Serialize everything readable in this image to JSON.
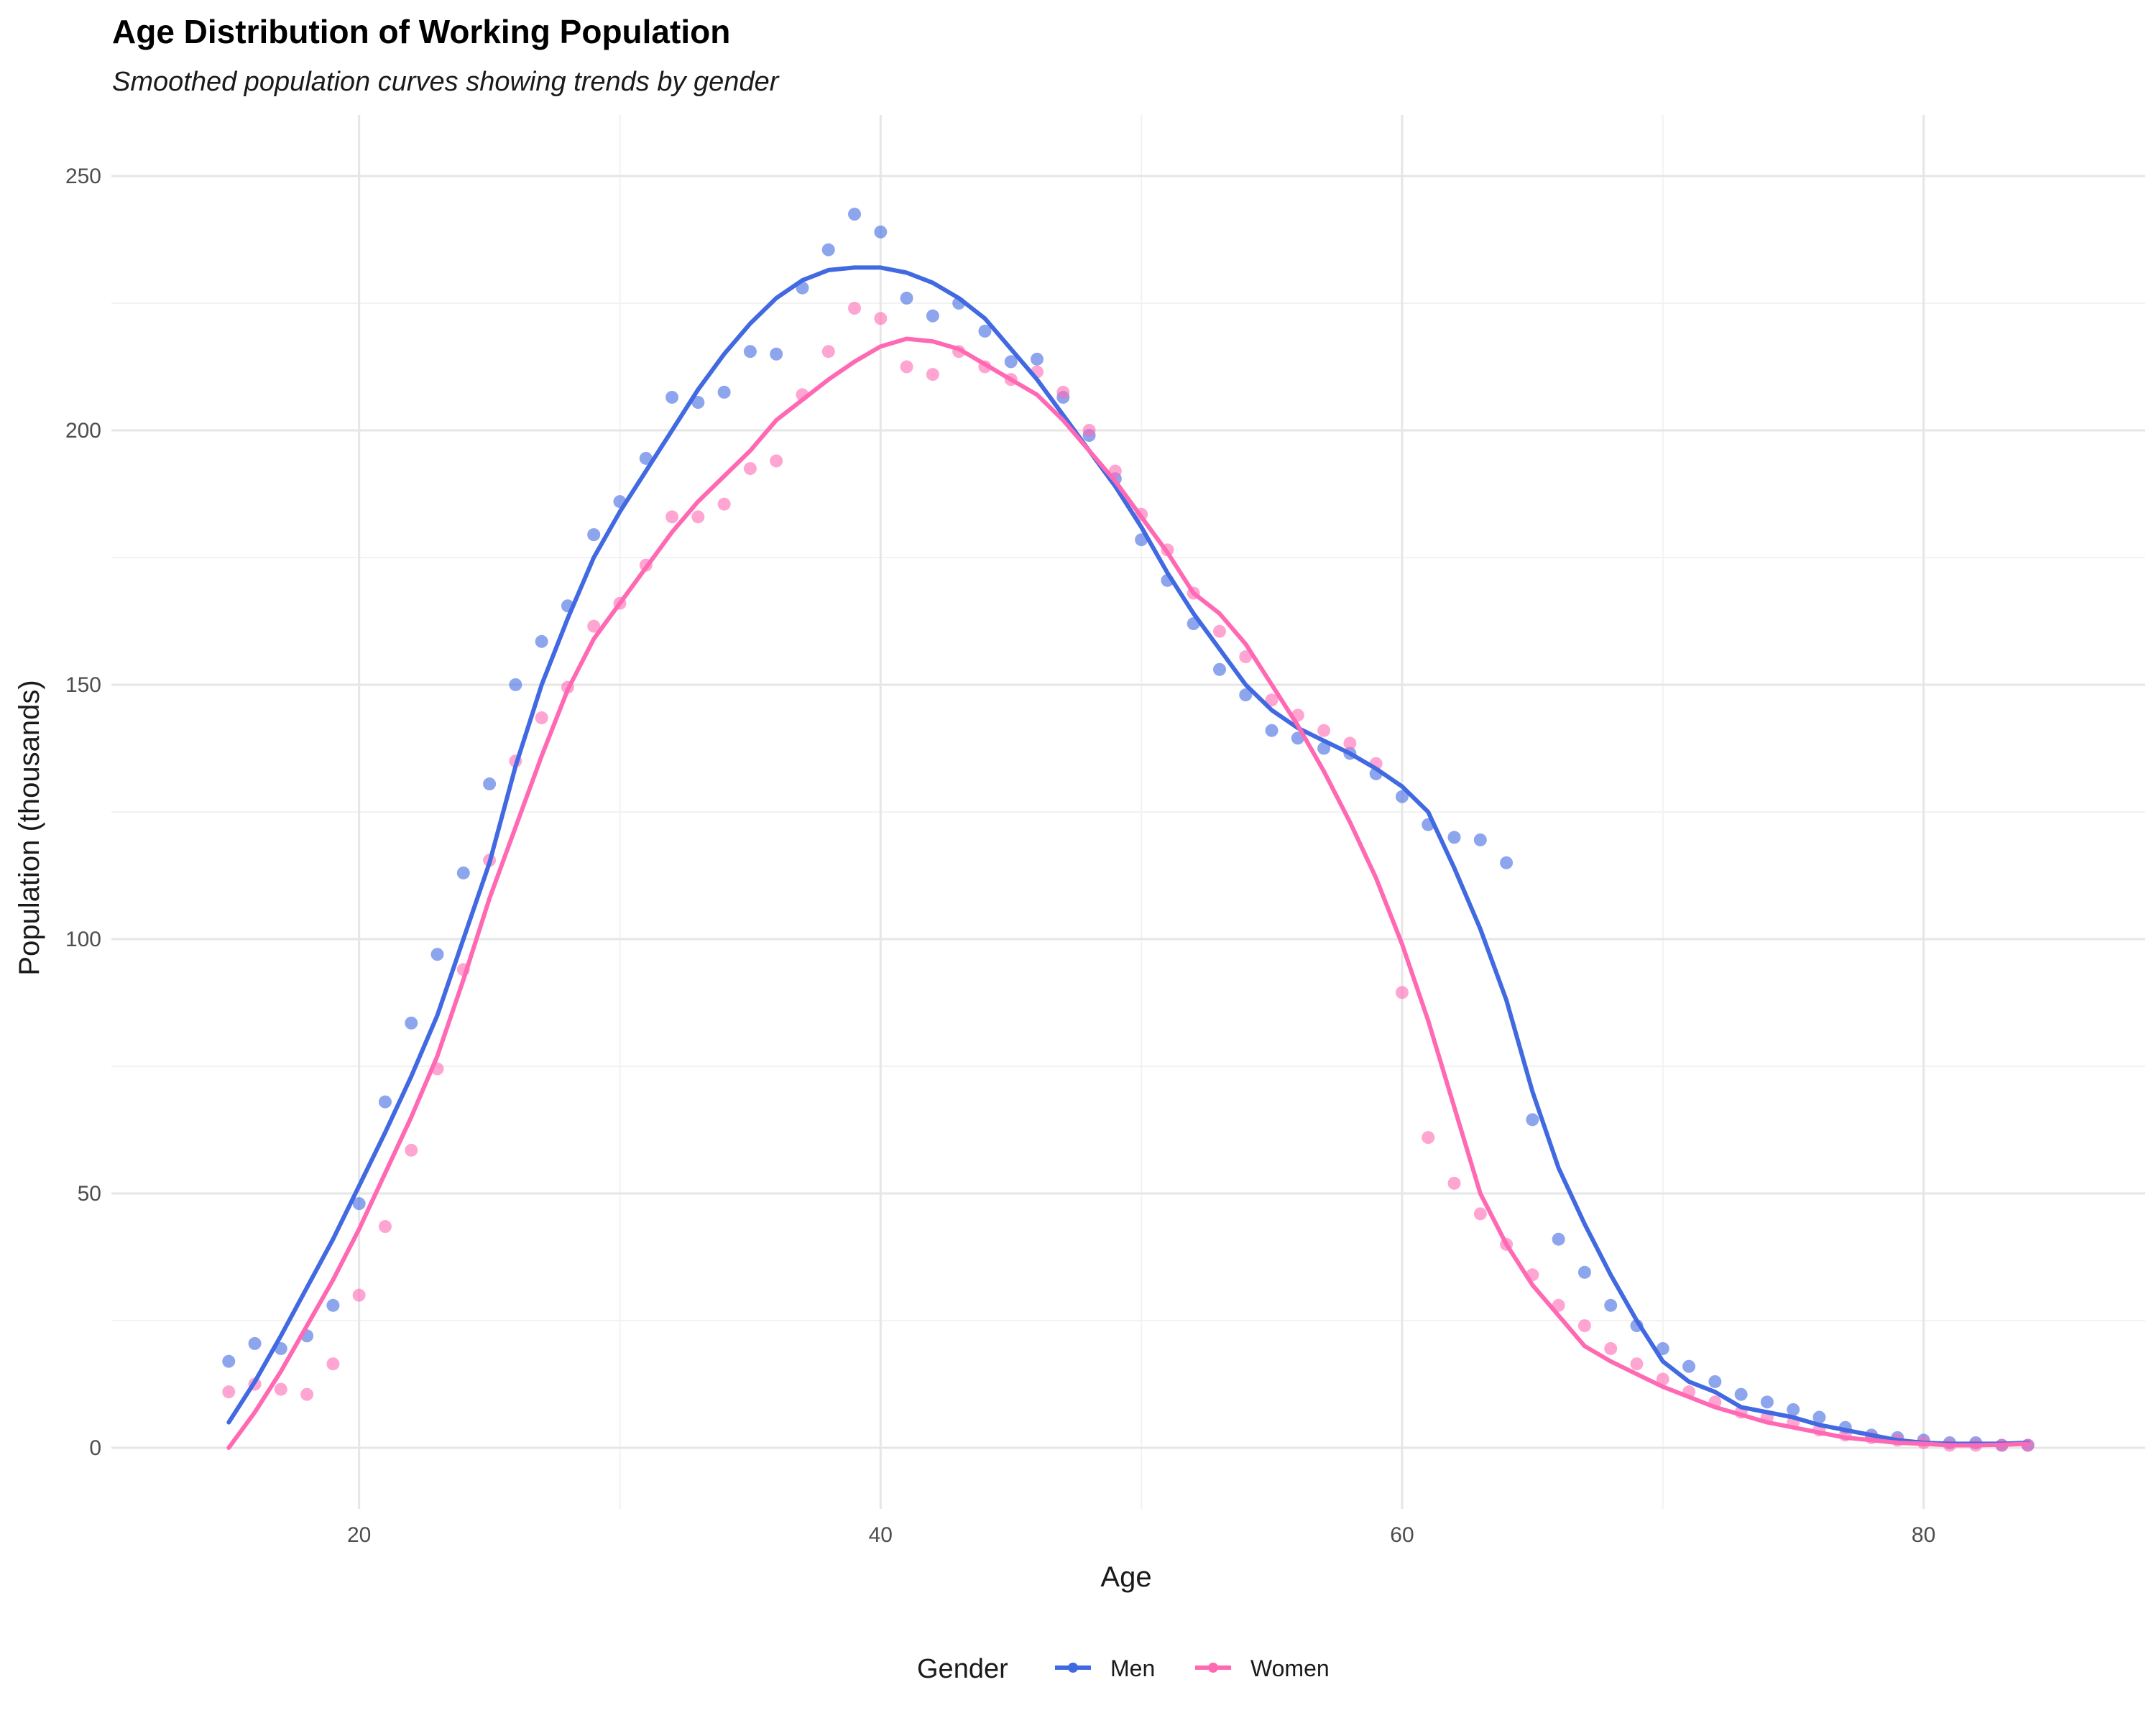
{
  "chart_data": {
    "type": "line",
    "title": "Age Distribution of Working Population",
    "subtitle": "Smoothed population curves showing trends by gender",
    "xlabel": "Age",
    "ylabel": "Population (thousands)",
    "xlim": [
      10.5,
      88.5
    ],
    "ylim": [
      -12,
      262
    ],
    "x_ticks": [
      20,
      40,
      60,
      80
    ],
    "y_ticks": [
      0,
      50,
      100,
      150,
      200,
      250
    ],
    "grid": true,
    "legend": {
      "title": "Gender",
      "position": "bottom"
    },
    "x": [
      15,
      16,
      17,
      18,
      19,
      20,
      21,
      22,
      23,
      24,
      25,
      26,
      27,
      28,
      29,
      30,
      31,
      32,
      33,
      34,
      35,
      36,
      37,
      38,
      39,
      40,
      41,
      42,
      43,
      44,
      45,
      46,
      47,
      48,
      49,
      50,
      51,
      52,
      53,
      54,
      55,
      56,
      57,
      58,
      59,
      60,
      61,
      62,
      63,
      64,
      65,
      66,
      67,
      68,
      69,
      70,
      71,
      72,
      73,
      74,
      75,
      76,
      77,
      78,
      79,
      80,
      81,
      82,
      83,
      84
    ],
    "series": [
      {
        "name": "Men",
        "color": "#4169E1",
        "points": [
          17,
          20.5,
          19.5,
          22,
          28,
          48,
          68,
          83.5,
          97,
          113,
          130.5,
          150,
          158.5,
          165.5,
          179.5,
          186,
          194.5,
          206.5,
          205.5,
          207.5,
          215.5,
          215,
          228,
          235.5,
          242.5,
          239,
          226,
          222.5,
          225,
          219.5,
          213.5,
          214,
          206.5,
          199,
          190.5,
          178.5,
          170.5,
          162,
          153,
          148,
          141,
          139.5,
          137.5,
          136.5,
          132.5,
          128,
          122.5,
          120,
          119.5,
          115,
          64.5,
          41,
          34.5,
          28,
          24,
          19.5,
          16,
          13,
          10.5,
          9,
          7.5,
          6,
          4,
          2.5,
          2,
          1.5,
          1,
          1,
          0.5,
          0.5
        ],
        "smooth": [
          5,
          13,
          22,
          31.5,
          41,
          51.5,
          62,
          73,
          85,
          100,
          115,
          134,
          150,
          163,
          175,
          184,
          192,
          200,
          208,
          215,
          221,
          226,
          229.5,
          231.5,
          232,
          232,
          231,
          229,
          226,
          222,
          216,
          210,
          203,
          196,
          189,
          181,
          172,
          164,
          157,
          150,
          145,
          141.5,
          139,
          136.5,
          133.5,
          130,
          125,
          114,
          102,
          88,
          70,
          55,
          44,
          34,
          25,
          17,
          13,
          11,
          8,
          7,
          6,
          4.5,
          3.5,
          2.5,
          1.5,
          1,
          0.8,
          0.8,
          0.8,
          1
        ]
      },
      {
        "name": "Women",
        "color": "#FF69B4",
        "points": [
          11,
          12.5,
          11.5,
          10.5,
          16.5,
          30,
          43.5,
          58.5,
          74.5,
          94,
          115.5,
          135,
          143.5,
          149.5,
          161.5,
          166,
          173.5,
          183,
          183,
          185.5,
          192.5,
          194,
          207,
          215.5,
          224,
          222,
          212.5,
          211,
          215.5,
          212.5,
          210,
          211.5,
          207.5,
          200,
          192,
          183.5,
          176.5,
          168,
          160.5,
          155.5,
          147,
          144,
          141,
          138.5,
          134.5,
          89.5,
          61,
          52,
          46,
          40,
          34,
          28,
          24,
          19.5,
          16.5,
          13.5,
          11,
          9,
          7,
          6,
          5,
          3.5,
          2.5,
          2,
          1.5,
          1,
          0.5,
          0.5,
          0.5,
          0.5
        ],
        "smooth": [
          0,
          7,
          15,
          24,
          33,
          43,
          54,
          65,
          77,
          92,
          108,
          122,
          136,
          149,
          159,
          166,
          173,
          180,
          186,
          191,
          196,
          202,
          206,
          210,
          213.5,
          216.5,
          218,
          217.5,
          216,
          213,
          210,
          207,
          202,
          196,
          190,
          183,
          176,
          168,
          164,
          158,
          150,
          142,
          133,
          123,
          112,
          99,
          84,
          67,
          50,
          40,
          32,
          26,
          20,
          17,
          14.5,
          12,
          10,
          8,
          6.5,
          5,
          4,
          3,
          2,
          1.5,
          1,
          0.8,
          0.5,
          0.5,
          0.6,
          0.8
        ]
      }
    ]
  }
}
